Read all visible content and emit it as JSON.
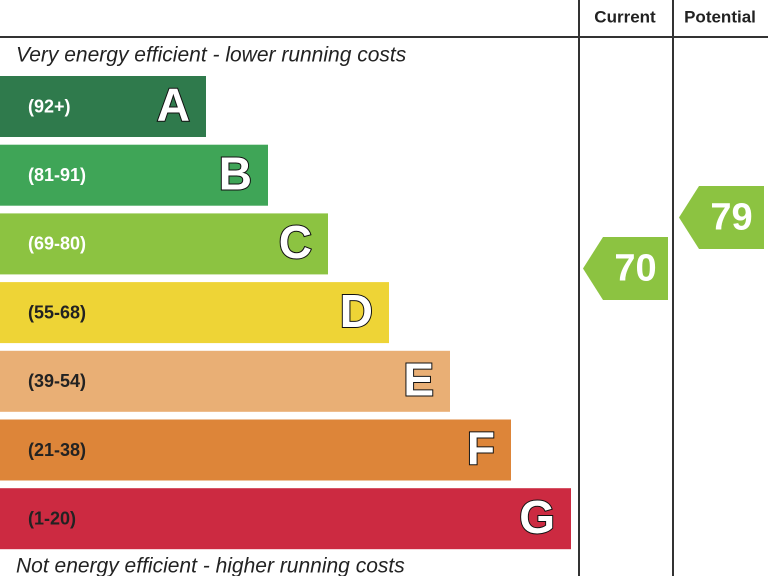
{
  "header": {
    "current": "Current",
    "potential": "Potential"
  },
  "top_note": "Very energy efficient - lower running costs",
  "bottom_note": "Not energy efficient - higher running costs",
  "bands": [
    {
      "range": "(92+)",
      "letter": "A",
      "color": "#2f7a4c"
    },
    {
      "range": "(81-91)",
      "letter": "B",
      "color": "#3fa557"
    },
    {
      "range": "(69-80)",
      "letter": "C",
      "color": "#8cc341"
    },
    {
      "range": "(55-68)",
      "letter": "D",
      "color": "#eed436"
    },
    {
      "range": "(39-54)",
      "letter": "E",
      "color": "#e9af75"
    },
    {
      "range": "(21-38)",
      "letter": "F",
      "color": "#dd8539"
    },
    {
      "range": "(1-20)",
      "letter": "G",
      "color": "#cc2a41"
    }
  ],
  "current": {
    "value": 70,
    "color": "#8cc341"
  },
  "potential": {
    "value": 79,
    "color": "#8cc341"
  }
}
